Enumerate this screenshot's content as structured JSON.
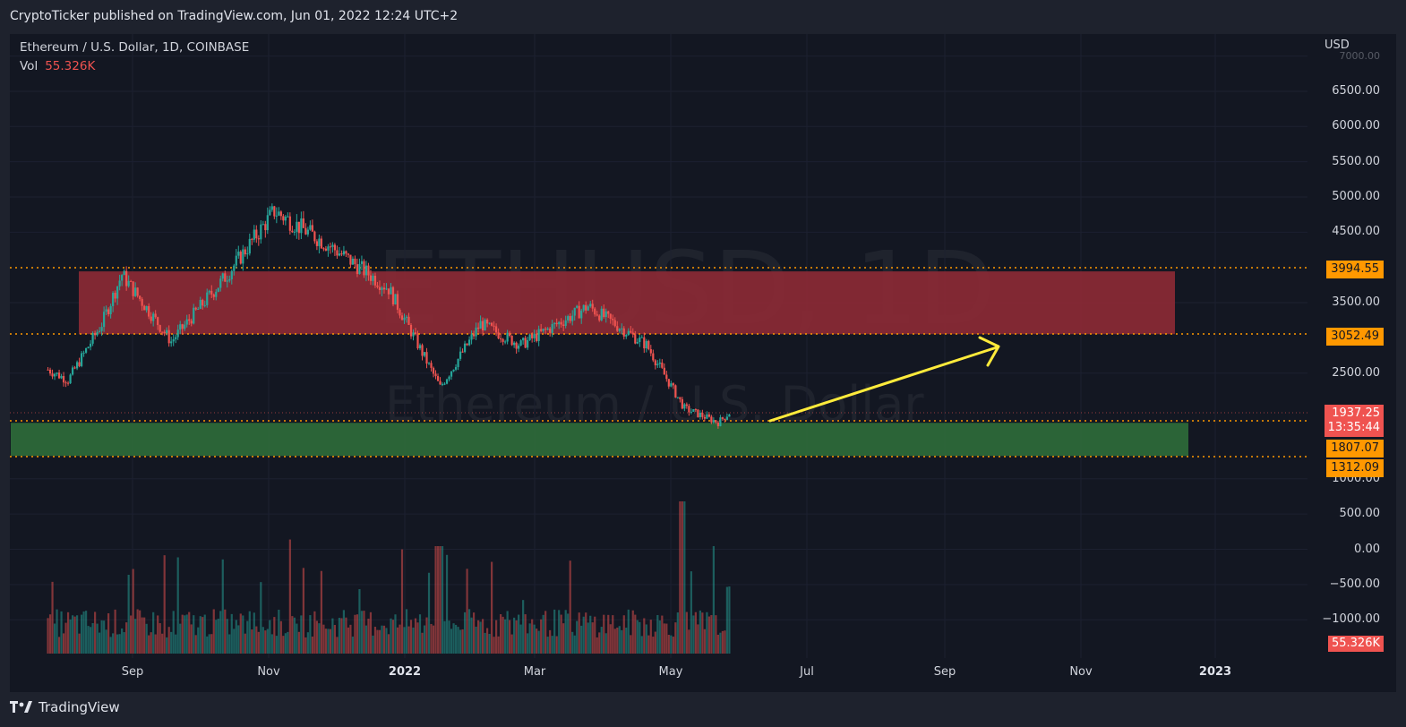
{
  "header": {
    "published_text": "CryptoTicker published on TradingView.com, Jun 01, 2022 12:24 UTC+2"
  },
  "legend": {
    "symbol_line": "Ethereum / U.S. Dollar, 1D, COINBASE",
    "vol_label": "Vol",
    "vol_value": "55.326K"
  },
  "watermark": {
    "symbol": "ETHUSD, 1D",
    "name": "Ethereum / U.S. Dollar"
  },
  "price_axis": {
    "currency": "USD",
    "ticks": [
      "7000.00",
      "6500.00",
      "6000.00",
      "5500.00",
      "5000.00",
      "4500.00",
      "3500.00",
      "2500.00",
      "1000.00",
      "500.00",
      "0.00",
      "−500.00",
      "−1000.00"
    ]
  },
  "levels": {
    "resistance_top": "3994.55",
    "resistance_bottom": "3052.49",
    "current_price": "1937.25",
    "countdown": "13:35:44",
    "support_top": "1807.07",
    "support_bottom": "1312.09",
    "volume_badge": "55.326K"
  },
  "time_axis": {
    "labels": [
      "Sep",
      "Nov",
      "2022",
      "Mar",
      "May",
      "Jul",
      "Sep",
      "Nov",
      "2023"
    ]
  },
  "colors": {
    "background": "#131722",
    "up": "#26a69a",
    "down": "#ef5350",
    "resistance_zone": "#8b2a35",
    "support_zone": "#2e6b3a",
    "level_line": "#ff9800",
    "arrow": "#ffeb3b"
  },
  "footer": {
    "brand": "TradingView",
    "logo_icon": "tradingview-logo-icon"
  },
  "chart_data": {
    "type": "candlestick",
    "title": "Ethereum / U.S. Dollar, 1D, COINBASE",
    "ylabel": "USD",
    "ylim": [
      -1100,
      7000
    ],
    "x_labels": [
      "Sep",
      "Nov",
      "2022",
      "Mar",
      "May",
      "Jul",
      "Sep",
      "Nov",
      "2023"
    ],
    "price_path_approx": [
      {
        "date": "2021-08-01",
        "close": 2550
      },
      {
        "date": "2021-08-10",
        "close": 2400
      },
      {
        "date": "2021-08-25",
        "close": 3200
      },
      {
        "date": "2021-09-03",
        "close": 3900
      },
      {
        "date": "2021-09-25",
        "close": 2950
      },
      {
        "date": "2021-10-20",
        "close": 3900
      },
      {
        "date": "2021-11-10",
        "close": 4800
      },
      {
        "date": "2021-12-05",
        "close": 4300
      },
      {
        "date": "2021-12-31",
        "close": 3700
      },
      {
        "date": "2022-01-23",
        "close": 2300
      },
      {
        "date": "2022-02-10",
        "close": 3200
      },
      {
        "date": "2022-02-28",
        "close": 2900
      },
      {
        "date": "2022-03-30",
        "close": 3450
      },
      {
        "date": "2022-04-25",
        "close": 2900
      },
      {
        "date": "2022-05-12",
        "close": 2000
      },
      {
        "date": "2022-05-27",
        "close": 1800
      },
      {
        "date": "2022-06-01",
        "close": 1937.25
      }
    ],
    "zones": [
      {
        "name": "resistance",
        "from": 3052.49,
        "to": 3994.55
      },
      {
        "name": "support",
        "from": 1312.09,
        "to": 1807.07
      }
    ],
    "volume_last": "55.326K"
  }
}
